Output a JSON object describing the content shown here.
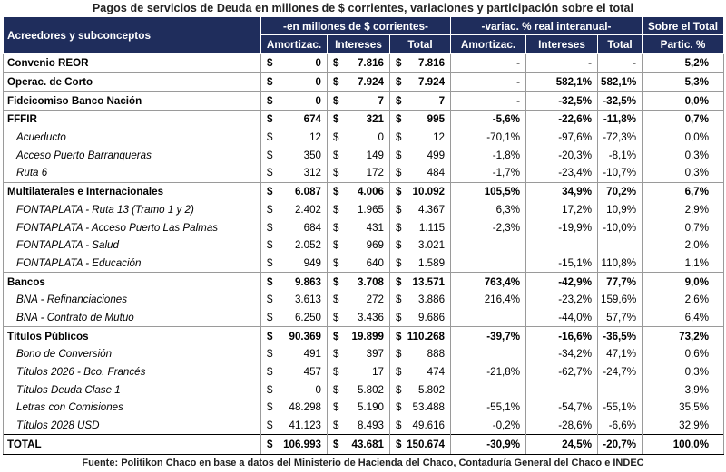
{
  "title": "Pagos de servicios de Deuda en millones de $ corrientes, variaciones y participación sobre el total",
  "header": {
    "label": "Acreedores y subconceptos",
    "group_nominal": "-en millones de $ corrientes-",
    "group_real": "-variac. % real interanual-",
    "group_share": "Sobre el Total",
    "cols": [
      "Amortizac.",
      "Intereses",
      "Total",
      "Amortizac.",
      "Intereses",
      "Total",
      "Partic. %"
    ]
  },
  "rows": [
    {
      "label": "Convenio REOR",
      "level": "main",
      "top": true,
      "amort": "0",
      "int": "7.816",
      "total": "7.816",
      "v_amort": "-",
      "v_int": "-",
      "v_total": "-",
      "part": "5,2%"
    },
    {
      "label": "Operac. de Corto",
      "level": "main",
      "top": true,
      "amort": "0",
      "int": "7.924",
      "total": "7.924",
      "v_amort": "-",
      "v_int": "582,1%",
      "v_total": "582,1%",
      "part": "5,3%"
    },
    {
      "label": "Fideicomiso Banco Nación",
      "level": "main",
      "top": true,
      "amort": "0",
      "int": "7",
      "total": "7",
      "v_amort": "-",
      "v_int": "-32,5%",
      "v_total": "-32,5%",
      "part": "0,0%"
    },
    {
      "label": "FFFIR",
      "level": "main",
      "top": true,
      "amort": "674",
      "int": "321",
      "total": "995",
      "v_amort": "-5,6%",
      "v_int": "-22,6%",
      "v_total": "-11,8%",
      "part": "0,7%"
    },
    {
      "label": "Acueducto",
      "level": "sub",
      "amort": "12",
      "int": "0",
      "total": "12",
      "v_amort": "-70,1%",
      "v_int": "-97,6%",
      "v_total": "-72,3%",
      "part": "0,0%"
    },
    {
      "label": "Acceso Puerto Barranqueras",
      "level": "sub",
      "amort": "350",
      "int": "149",
      "total": "499",
      "v_amort": "-1,8%",
      "v_int": "-20,3%",
      "v_total": "-8,1%",
      "part": "0,3%"
    },
    {
      "label": "Ruta 6",
      "level": "sub",
      "amort": "312",
      "int": "172",
      "total": "484",
      "v_amort": "-1,7%",
      "v_int": "-23,4%",
      "v_total": "-10,7%",
      "part": "0,3%"
    },
    {
      "label": "Multilaterales e Internacionales",
      "level": "main",
      "top": true,
      "amort": "6.087",
      "int": "4.006",
      "total": "10.092",
      "v_amort": "105,5%",
      "v_int": "34,9%",
      "v_total": "70,2%",
      "part": "6,7%"
    },
    {
      "label": "FONTAPLATA - Ruta 13 (Tramo 1 y 2)",
      "level": "sub",
      "amort": "2.402",
      "int": "1.965",
      "total": "4.367",
      "v_amort": "6,3%",
      "v_int": "17,2%",
      "v_total": "10,9%",
      "part": "2,9%"
    },
    {
      "label": "FONTAPLATA - Acceso Puerto Las Palmas",
      "level": "sub",
      "amort": "684",
      "int": "431",
      "total": "1.115",
      "v_amort": "-2,3%",
      "v_int": "-19,9%",
      "v_total": "-10,0%",
      "part": "0,7%"
    },
    {
      "label": "FONTAPLATA - Salud",
      "level": "sub",
      "amort": "2.052",
      "int": "969",
      "total": "3.021",
      "v_amort": "",
      "v_int": "",
      "v_total": "",
      "part": "2,0%"
    },
    {
      "label": "FONTAPLATA - Educación",
      "level": "sub",
      "amort": "949",
      "int": "640",
      "total": "1.589",
      "v_amort": "",
      "v_int": "-15,1%",
      "v_total": "110,8%",
      "part": "1,1%"
    },
    {
      "label": "Bancos",
      "level": "main",
      "top": true,
      "amort": "9.863",
      "int": "3.708",
      "total": "13.571",
      "v_amort": "763,4%",
      "v_int": "-42,9%",
      "v_total": "77,7%",
      "part": "9,0%"
    },
    {
      "label": "BNA - Refinanciaciones",
      "level": "sub",
      "amort": "3.613",
      "int": "272",
      "total": "3.886",
      "v_amort": "216,4%",
      "v_int": "-23,2%",
      "v_total": "159,6%",
      "part": "2,6%"
    },
    {
      "label": "BNA - Contrato de Mutuo",
      "level": "sub",
      "amort": "6.250",
      "int": "3.436",
      "total": "9.686",
      "v_amort": "",
      "v_int": "-44,0%",
      "v_total": "57,7%",
      "part": "6,4%"
    },
    {
      "label": "Títulos Públicos",
      "level": "main",
      "top": true,
      "amort": "90.369",
      "int": "19.899",
      "total": "110.268",
      "v_amort": "-39,7%",
      "v_int": "-16,6%",
      "v_total": "-36,5%",
      "part": "73,2%"
    },
    {
      "label": "Bono de Conversión",
      "level": "sub",
      "amort": "491",
      "int": "397",
      "total": "888",
      "v_amort": "",
      "v_int": "-34,2%",
      "v_total": "47,1%",
      "part": "0,6%"
    },
    {
      "label": "Títulos 2026 - Bco. Francés",
      "level": "sub",
      "amort": "457",
      "int": "17",
      "total": "474",
      "v_amort": "-21,8%",
      "v_int": "-62,7%",
      "v_total": "-24,7%",
      "part": "0,3%"
    },
    {
      "label": "Títulos Deuda Clase 1",
      "level": "sub",
      "amort": "0",
      "int": "5.802",
      "total": "5.802",
      "v_amort": "",
      "v_int": "",
      "v_total": "",
      "part": "3,9%"
    },
    {
      "label": "Letras con Comisiones",
      "level": "sub",
      "amort": "48.298",
      "int": "5.190",
      "total": "53.488",
      "v_amort": "-55,1%",
      "v_int": "-54,7%",
      "v_total": "-55,1%",
      "part": "35,5%"
    },
    {
      "label": "Títulos 2028 USD",
      "level": "sub",
      "amort": "41.123",
      "int": "8.493",
      "total": "49.616",
      "v_amort": "-0,2%",
      "v_int": "-28,6%",
      "v_total": "-6,6%",
      "part": "32,9%"
    }
  ],
  "total_row": {
    "label": "TOTAL",
    "amort": "106.993",
    "int": "43.681",
    "total": "150.674",
    "v_amort": "-30,9%",
    "v_int": "24,5%",
    "v_total": "-20,7%",
    "part": "100,0%"
  },
  "currency_symbol": "$",
  "footer": {
    "prefix": "Fuente:",
    "text": "Politikon Chaco en base a datos del Ministerio de Hacienda del Chaco, Contaduría General del Chaco e INDEC"
  }
}
